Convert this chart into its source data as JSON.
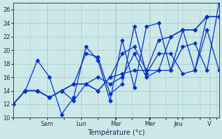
{
  "xlabel": "Température (°c)",
  "background_color": "#cce8e8",
  "grid_color": "#aacccc",
  "line_color": "#0033cc",
  "ylim": [
    10,
    27
  ],
  "xlim": [
    0,
    17
  ],
  "day_labels": [
    "Sam",
    "Lun",
    "Mar",
    "Mer",
    "Jeu",
    "V"
  ],
  "day_tick_x": [
    2.8,
    5.6,
    8.5,
    11.3,
    13.6,
    16.2
  ],
  "series": [
    {
      "x": [
        0,
        1,
        2,
        3,
        4,
        5,
        6,
        7,
        8,
        9,
        10,
        11,
        12,
        13,
        14,
        15,
        16,
        17
      ],
      "y": [
        12,
        14,
        18.5,
        16,
        10.5,
        13,
        20.5,
        18.5,
        12.5,
        21.5,
        14.5,
        23.5,
        24,
        17,
        20.5,
        21,
        17,
        27
      ]
    },
    {
      "x": [
        0,
        1,
        2,
        3,
        4,
        5,
        6,
        7,
        8,
        9,
        10,
        11,
        12,
        13,
        14,
        15,
        16,
        17
      ],
      "y": [
        12,
        14,
        14,
        13,
        14,
        15,
        19.5,
        19,
        13.5,
        15,
        23.5,
        16.5,
        19.5,
        19.5,
        16.5,
        17,
        23,
        17
      ]
    },
    {
      "x": [
        0,
        1,
        2,
        3,
        4,
        5,
        6,
        7,
        8,
        9,
        10,
        11,
        12,
        13,
        14,
        15,
        16,
        17
      ],
      "y": [
        12,
        14,
        14,
        13,
        14,
        12.5,
        15,
        16,
        15,
        16,
        19.5,
        16,
        17,
        17,
        23,
        17,
        25,
        25
      ]
    },
    {
      "x": [
        0,
        1,
        2,
        3,
        4,
        5,
        6,
        7,
        8,
        9,
        10,
        11,
        12,
        13,
        14,
        15,
        16,
        17
      ],
      "y": [
        12,
        14,
        14,
        13,
        14,
        15,
        15,
        14,
        16,
        16.5,
        17,
        17,
        21.5,
        22,
        23,
        23,
        25,
        25
      ]
    },
    {
      "x": [
        0,
        1,
        2,
        3,
        4,
        5,
        6,
        7,
        8,
        9,
        10,
        11,
        12,
        13,
        14,
        15,
        16,
        17
      ],
      "y": [
        12,
        14,
        14,
        13,
        14,
        15,
        15,
        14,
        16,
        19.5,
        20.5,
        17,
        17,
        22,
        23,
        23,
        25,
        25
      ]
    }
  ]
}
